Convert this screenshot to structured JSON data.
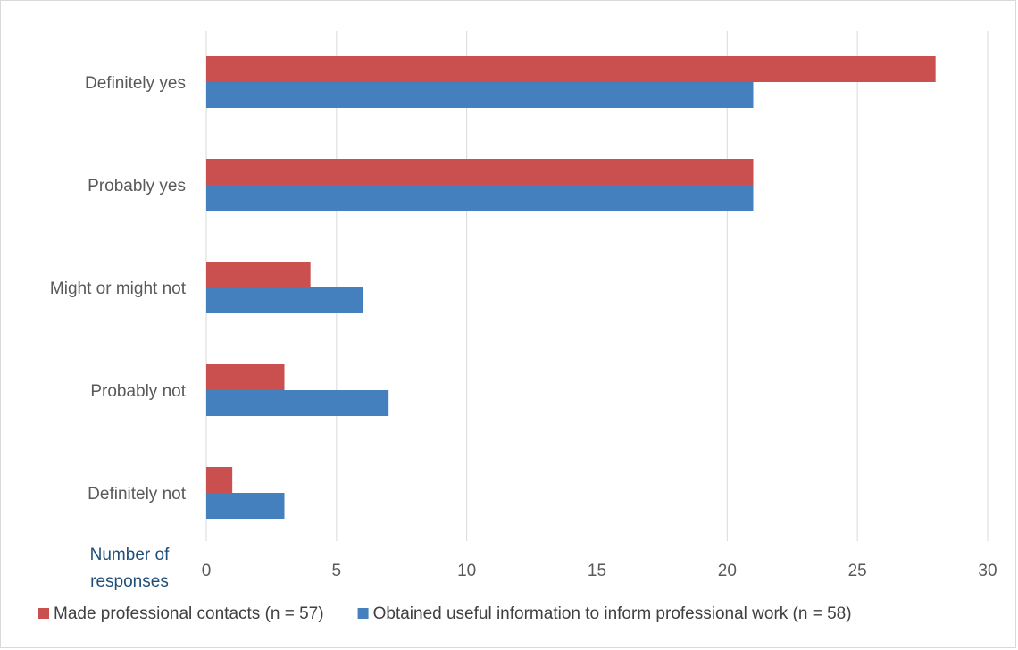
{
  "chart_data": {
    "type": "bar",
    "orientation": "horizontal",
    "categories": [
      "Definitely yes",
      "Probably yes",
      "Might or might not",
      "Probably not",
      "Definitely not"
    ],
    "series": [
      {
        "name": "Made professional contacts (n = 57)",
        "values": [
          28,
          21,
          4,
          3,
          1
        ],
        "color": "#c9504f"
      },
      {
        "name": "Obtained useful information to inform professional work (n = 58)",
        "values": [
          21,
          21,
          6,
          7,
          3
        ],
        "color": "#4480bd"
      }
    ],
    "xlabel": "Number of responses",
    "xlabel_lines": [
      "Number of",
      "responses"
    ],
    "xlim": [
      0,
      30
    ],
    "xticks": [
      0,
      5,
      10,
      15,
      20,
      25,
      30
    ],
    "grid": "vertical",
    "legend": "bottom"
  }
}
